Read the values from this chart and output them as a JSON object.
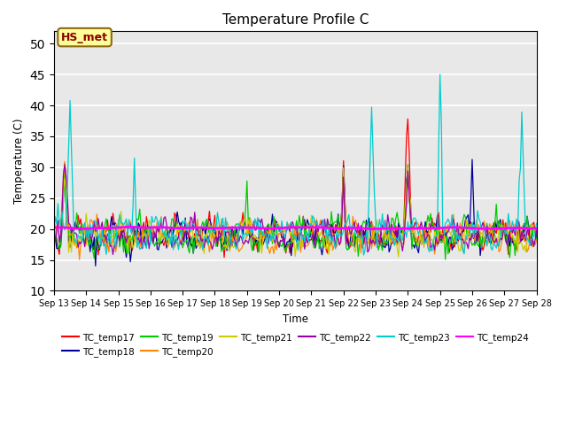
{
  "title": "Temperature Profile C",
  "xlabel": "Time",
  "ylabel": "Temperature (C)",
  "ylim": [
    10,
    52
  ],
  "xlim": [
    0,
    360
  ],
  "annotation_text": "HS_met",
  "annotation_color": "#8B0000",
  "annotation_bg": "#FFFF99",
  "annotation_border": "#8B6914",
  "series_colors": {
    "TC_temp17": "#FF0000",
    "TC_temp18": "#000099",
    "TC_temp19": "#00CC00",
    "TC_temp20": "#FF8800",
    "TC_temp21": "#CCCC00",
    "TC_temp22": "#9900AA",
    "TC_temp23": "#00CCCC",
    "TC_temp24": "#FF00FF"
  },
  "x_tick_labels": [
    "Sep 13",
    "Sep 14",
    "Sep 15",
    "Sep 16",
    "Sep 17",
    "Sep 18",
    "Sep 19",
    "Sep 20",
    "Sep 21",
    "Sep 22",
    "Sep 23",
    "Sep 24",
    "Sep 25",
    "Sep 26",
    "Sep 27",
    "Sep 28"
  ],
  "x_tick_positions": [
    0,
    24,
    48,
    72,
    96,
    120,
    144,
    168,
    192,
    216,
    240,
    264,
    288,
    312,
    336,
    360
  ],
  "background_color": "#E8E8E8",
  "grid_color": "#FFFFFF",
  "yticks": [
    10,
    15,
    20,
    25,
    30,
    35,
    40,
    45,
    50
  ],
  "legend_order": [
    "TC_temp17",
    "TC_temp18",
    "TC_temp19",
    "TC_temp20",
    "TC_temp21",
    "TC_temp22",
    "TC_temp23",
    "TC_temp24"
  ]
}
